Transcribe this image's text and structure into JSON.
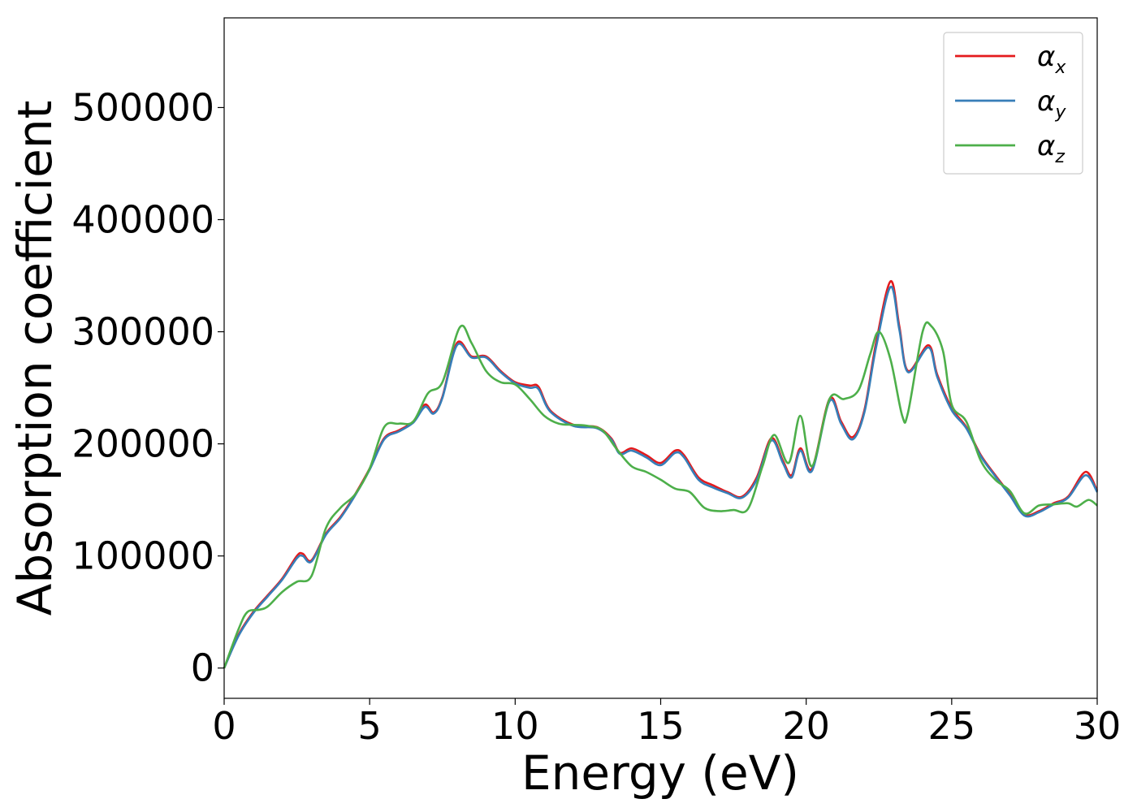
{
  "chart_data": {
    "type": "line",
    "title": "",
    "xlabel": "Energy (eV)",
    "ylabel": "Absorption coefficient",
    "xlim": [
      0,
      30
    ],
    "ylim": [
      -27000,
      580000
    ],
    "xticks": [
      0,
      5,
      10,
      15,
      20,
      25,
      30
    ],
    "yticks": [
      0,
      100000,
      200000,
      300000,
      400000,
      500000
    ],
    "grid": false,
    "legend_position": "top-right",
    "series": [
      {
        "name": "α_x",
        "legend_main": "α",
        "legend_sub": "x",
        "color": "#e41a1c",
        "x": [
          0,
          0.5,
          1.0,
          1.5,
          2.0,
          2.5,
          2.7,
          3.0,
          3.5,
          4.0,
          4.5,
          5.0,
          5.5,
          6.0,
          6.5,
          6.9,
          7.2,
          7.5,
          8.0,
          8.5,
          9.0,
          9.5,
          10.0,
          10.5,
          10.8,
          11.2,
          12.0,
          12.8,
          13.3,
          13.6,
          14.0,
          14.5,
          15.0,
          15.5,
          15.8,
          16.3,
          16.8,
          17.3,
          17.8,
          18.3,
          18.8,
          19.2,
          19.5,
          19.8,
          20.2,
          20.8,
          21.2,
          21.6,
          22.0,
          22.4,
          22.9,
          23.2,
          23.5,
          24.2,
          24.5,
          25.0,
          25.5,
          26.0,
          26.5,
          27.0,
          27.5,
          28.0,
          28.5,
          29.0,
          29.6,
          30.0
        ],
        "y": [
          0,
          30000,
          50000,
          65000,
          80000,
          100000,
          102000,
          96000,
          120000,
          135000,
          155000,
          178000,
          205000,
          212000,
          220000,
          235000,
          228000,
          242000,
          290000,
          278000,
          278000,
          265000,
          255000,
          252000,
          251000,
          230000,
          217000,
          215000,
          205000,
          192000,
          196000,
          190000,
          183000,
          194000,
          190000,
          170000,
          163000,
          157000,
          153000,
          170000,
          205000,
          185000,
          172000,
          196000,
          178000,
          240000,
          220000,
          206000,
          230000,
          290000,
          345000,
          305000,
          265000,
          288000,
          262000,
          232000,
          215000,
          190000,
          172000,
          155000,
          137000,
          140000,
          147000,
          153000,
          175000,
          158000
        ]
      },
      {
        "name": "α_y",
        "legend_main": "α",
        "legend_sub": "y",
        "color": "#377eb8",
        "x": [
          0,
          0.5,
          1.0,
          1.5,
          2.0,
          2.5,
          2.7,
          3.0,
          3.5,
          4.0,
          4.5,
          5.0,
          5.5,
          6.0,
          6.5,
          6.9,
          7.2,
          7.5,
          8.0,
          8.5,
          9.0,
          9.5,
          10.0,
          10.5,
          10.8,
          11.2,
          12.0,
          12.8,
          13.3,
          13.6,
          14.0,
          14.5,
          15.0,
          15.5,
          15.8,
          16.3,
          16.8,
          17.3,
          17.8,
          18.3,
          18.8,
          19.2,
          19.5,
          19.8,
          20.2,
          20.8,
          21.2,
          21.6,
          22.0,
          22.4,
          22.9,
          23.2,
          23.5,
          24.2,
          24.5,
          25.0,
          25.5,
          26.0,
          26.5,
          27.0,
          27.5,
          28.0,
          28.5,
          29.0,
          29.6,
          30.0
        ],
        "y": [
          0,
          29000,
          49000,
          64000,
          79000,
          98000,
          100000,
          95000,
          119000,
          134000,
          154000,
          177000,
          204000,
          211000,
          219000,
          233000,
          227000,
          241000,
          288000,
          277000,
          277000,
          264000,
          254000,
          250000,
          249000,
          229000,
          216000,
          214000,
          204000,
          191000,
          194000,
          188000,
          181000,
          192000,
          188000,
          168000,
          161000,
          156000,
          152000,
          168000,
          203000,
          183000,
          170000,
          194000,
          176000,
          238000,
          218000,
          204000,
          228000,
          286000,
          340000,
          302000,
          264000,
          286000,
          260000,
          230000,
          214000,
          189000,
          171000,
          154000,
          136000,
          139000,
          146000,
          152000,
          172000,
          157000
        ]
      },
      {
        "name": "α_z",
        "legend_main": "α",
        "legend_sub": "z",
        "color": "#4daf4a",
        "x": [
          0,
          0.5,
          0.8,
          1.2,
          1.5,
          2.0,
          2.5,
          3.0,
          3.5,
          4.0,
          4.5,
          5.0,
          5.5,
          6.0,
          6.5,
          7.0,
          7.5,
          8.1,
          8.5,
          9.0,
          9.5,
          10.0,
          10.5,
          11.0,
          11.5,
          12.0,
          12.5,
          13.0,
          13.5,
          14.0,
          14.5,
          15.0,
          15.5,
          16.0,
          16.5,
          17.0,
          17.5,
          18.0,
          18.5,
          18.9,
          19.4,
          19.8,
          20.2,
          20.8,
          21.3,
          21.8,
          22.2,
          22.5,
          22.9,
          23.3,
          23.5,
          24.0,
          24.3,
          24.7,
          25.0,
          25.5,
          26.0,
          26.5,
          27.0,
          27.5,
          28.0,
          28.5,
          29.0,
          29.3,
          29.7,
          30.0
        ],
        "y": [
          0,
          35000,
          50000,
          52000,
          55000,
          68000,
          77000,
          82000,
          125000,
          143000,
          155000,
          178000,
          215000,
          218000,
          220000,
          245000,
          255000,
          304000,
          290000,
          265000,
          255000,
          253000,
          240000,
          225000,
          218000,
          217000,
          216000,
          212000,
          195000,
          180000,
          175000,
          168000,
          160000,
          157000,
          143000,
          140000,
          141000,
          142000,
          180000,
          208000,
          183000,
          225000,
          180000,
          240000,
          240000,
          248000,
          280000,
          300000,
          275000,
          225000,
          228000,
          300000,
          305000,
          283000,
          235000,
          220000,
          185000,
          168000,
          158000,
          138000,
          145000,
          146000,
          147000,
          144000,
          150000,
          145000
        ]
      }
    ]
  }
}
